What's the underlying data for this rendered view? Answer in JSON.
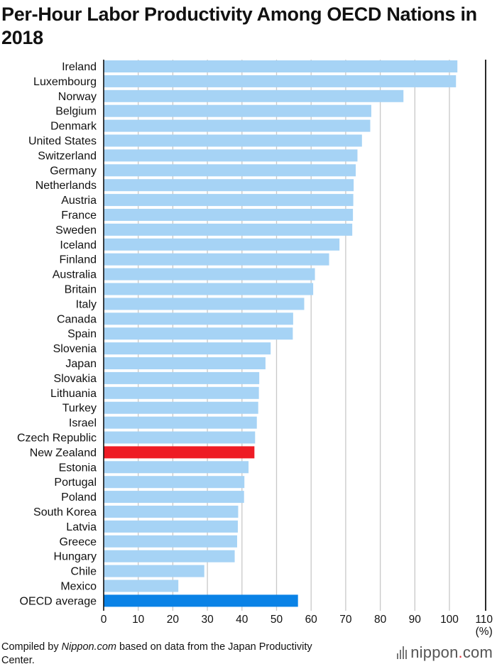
{
  "title": "Per-Hour Labor Productivity Among OECD Nations in 2018",
  "footer": {
    "prefix": "Compiled by ",
    "source_italic": "Nippon.com",
    "suffix": " based on data from the Japan Productivity Center."
  },
  "brand": {
    "name_left": "nippon",
    "dot": ".",
    "name_right": "com"
  },
  "colors": {
    "bar_default": "#a6d3f5",
    "bar_highlight_red": "#ee1c25",
    "bar_highlight_blue": "#0a82e6",
    "grid": "#c8c8c8",
    "axis": "#111111"
  },
  "chart_data": {
    "type": "bar",
    "orientation": "horizontal",
    "unit_label": "(%)",
    "xlim": [
      0,
      110
    ],
    "xticks": [
      0,
      10,
      20,
      30,
      40,
      50,
      60,
      70,
      80,
      90,
      100,
      110
    ],
    "grid": true,
    "categories": [
      "Ireland",
      "Luxembourg",
      "Norway",
      "Belgium",
      "Denmark",
      "United States",
      "Switzerland",
      "Germany",
      "Netherlands",
      "Austria",
      "France",
      "Sweden",
      "Iceland",
      "Finland",
      "Australia",
      "Britain",
      "Italy",
      "Canada",
      "Spain",
      "Slovenia",
      "Japan",
      "Slovakia",
      "Lithuania",
      "Turkey",
      "Israel",
      "Czech Republic",
      "New Zealand",
      "Estonia",
      "Portugal",
      "Poland",
      "South Korea",
      "Latvia",
      "Greece",
      "Hungary",
      "Chile",
      "Mexico",
      "OECD average"
    ],
    "values": [
      102.3,
      101.9,
      86.7,
      77.4,
      77.1,
      74.7,
      73.4,
      72.9,
      72.3,
      72.2,
      72.1,
      71.9,
      68.2,
      65.2,
      61.1,
      60.6,
      58.0,
      54.8,
      54.7,
      48.3,
      46.8,
      45.0,
      44.9,
      44.7,
      44.3,
      43.8,
      43.6,
      41.9,
      40.7,
      40.6,
      38.9,
      38.8,
      38.6,
      37.9,
      29.1,
      21.6,
      56.2
    ],
    "highlights": {
      "New Zealand": "red",
      "OECD average": "blue"
    }
  }
}
